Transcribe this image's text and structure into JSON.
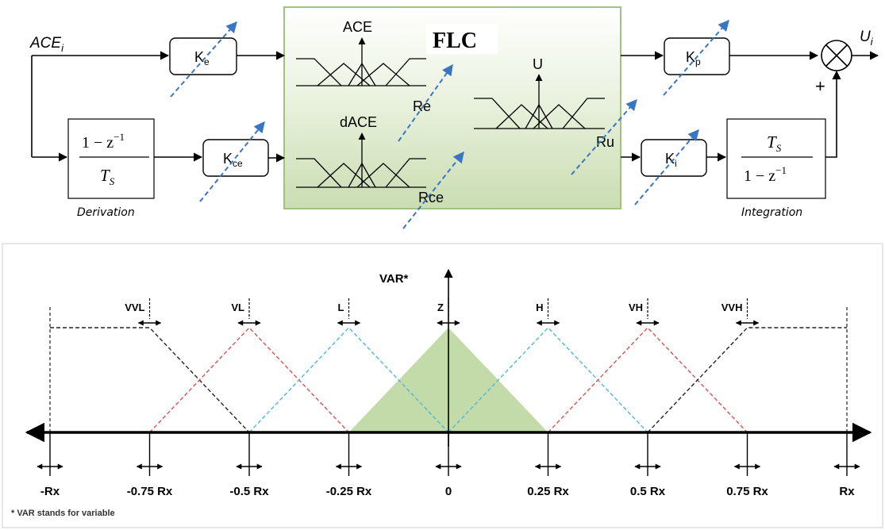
{
  "block_diagram": {
    "input_label": "ACE",
    "input_sub": "i",
    "output_label": "U",
    "output_sub": "i",
    "gain_e": "K",
    "gain_e_sub": "e",
    "gain_ce": "K",
    "gain_ce_sub": "ce",
    "gain_p": "K",
    "gain_p_sub": "p",
    "gain_i": "K",
    "gain_i_sub": "i",
    "derivation_num": "1 − z",
    "derivation_num_exp": "−1",
    "derivation_den": "T",
    "derivation_den_sub": "S",
    "derivation_caption": "Derivation",
    "integration_num": "T",
    "integration_num_sub": "S",
    "integration_den": "1 − z",
    "integration_den_exp": "−1",
    "integration_caption": "Integration",
    "flc_title": "FLC",
    "mf_ace_label": "ACE",
    "mf_dace_label": "dACE",
    "mf_u_label": "U",
    "range_re": "Re",
    "range_rce": "Rce",
    "range_ru": "Ru",
    "sum_sign": "+",
    "colors": {
      "flc_fill": "#d7e6c4",
      "flc_border": "#9fc27d",
      "tuning_arrow": "#3a75c4"
    }
  },
  "membership_chart": {
    "axis_label": "VAR*",
    "sets": [
      "VVL",
      "VL",
      "L",
      "Z",
      "H",
      "VH",
      "VVH"
    ],
    "ticks": [
      "-Rx",
      "-0.75 Rx",
      "-0.5 Rx",
      "-0.25 Rx",
      "0",
      "0.25 Rx",
      "0.5 Rx",
      "0.75 Rx",
      "Rx"
    ],
    "footnote": "* VAR stands for variable",
    "colors": {
      "outer": "#222222",
      "red": "#d9534f",
      "blue": "#4fb8d8",
      "zero_fill": "#b9d39a"
    }
  },
  "chart_data": {
    "type": "diagram",
    "x_unit": "Rx",
    "membership_functions": [
      {
        "name": "VVL",
        "points": [
          [
            -1,
            1
          ],
          [
            -0.75,
            1
          ],
          [
            -0.5,
            0
          ]
        ]
      },
      {
        "name": "VL",
        "points": [
          [
            -0.75,
            0
          ],
          [
            -0.5,
            1
          ],
          [
            -0.25,
            0
          ]
        ]
      },
      {
        "name": "L",
        "points": [
          [
            -0.5,
            0
          ],
          [
            -0.25,
            1
          ],
          [
            0,
            0
          ]
        ]
      },
      {
        "name": "Z",
        "points": [
          [
            -0.25,
            0
          ],
          [
            0,
            1
          ],
          [
            0.25,
            0
          ]
        ]
      },
      {
        "name": "H",
        "points": [
          [
            0,
            0
          ],
          [
            0.25,
            1
          ],
          [
            0.5,
            0
          ]
        ]
      },
      {
        "name": "VH",
        "points": [
          [
            0.25,
            0
          ],
          [
            0.5,
            1
          ],
          [
            0.75,
            0
          ]
        ]
      },
      {
        "name": "VVH",
        "points": [
          [
            0.5,
            0
          ],
          [
            0.75,
            1
          ],
          [
            1,
            1
          ]
        ]
      }
    ]
  }
}
